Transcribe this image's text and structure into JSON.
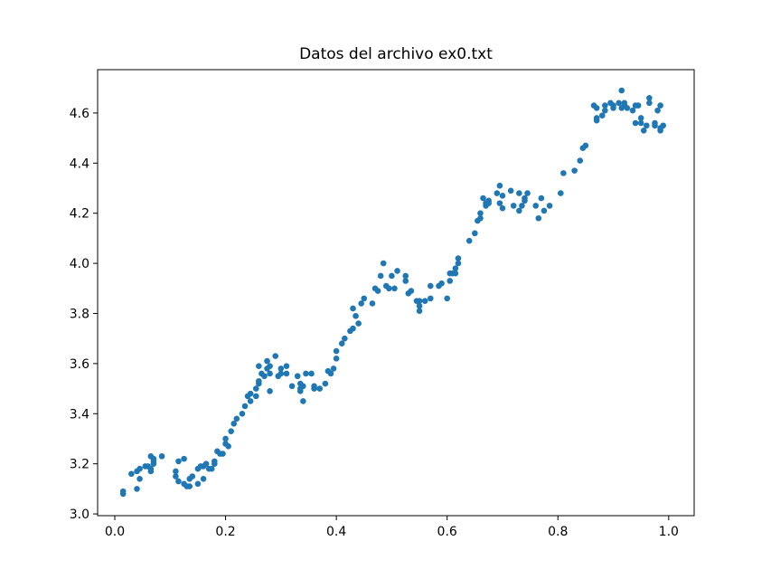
{
  "chart_data": {
    "type": "scatter",
    "title": "Datos del archivo ex0.txt",
    "color": "#1f77b4",
    "x": [
      0.015,
      0.015,
      0.03,
      0.04,
      0.04,
      0.045,
      0.045,
      0.055,
      0.06,
      0.065,
      0.065,
      0.065,
      0.07,
      0.07,
      0.07,
      0.085,
      0.11,
      0.11,
      0.115,
      0.115,
      0.125,
      0.125,
      0.13,
      0.135,
      0.135,
      0.14,
      0.15,
      0.15,
      0.155,
      0.16,
      0.16,
      0.165,
      0.17,
      0.175,
      0.18,
      0.18,
      0.185,
      0.19,
      0.195,
      0.2,
      0.2,
      0.205,
      0.21,
      0.215,
      0.22,
      0.23,
      0.235,
      0.24,
      0.245,
      0.245,
      0.255,
      0.255,
      0.26,
      0.26,
      0.26,
      0.265,
      0.27,
      0.275,
      0.275,
      0.28,
      0.28,
      0.28,
      0.29,
      0.295,
      0.3,
      0.3,
      0.31,
      0.31,
      0.32,
      0.33,
      0.335,
      0.335,
      0.335,
      0.34,
      0.34,
      0.345,
      0.355,
      0.36,
      0.36,
      0.37,
      0.38,
      0.385,
      0.39,
      0.395,
      0.4,
      0.4,
      0.41,
      0.415,
      0.425,
      0.43,
      0.43,
      0.435,
      0.44,
      0.445,
      0.45,
      0.465,
      0.47,
      0.475,
      0.48,
      0.485,
      0.49,
      0.495,
      0.5,
      0.505,
      0.51,
      0.525,
      0.525,
      0.53,
      0.535,
      0.545,
      0.55,
      0.55,
      0.55,
      0.56,
      0.57,
      0.57,
      0.585,
      0.59,
      0.6,
      0.605,
      0.605,
      0.61,
      0.615,
      0.615,
      0.62,
      0.62,
      0.64,
      0.65,
      0.655,
      0.66,
      0.66,
      0.665,
      0.67,
      0.67,
      0.675,
      0.675,
      0.69,
      0.695,
      0.695,
      0.7,
      0.7,
      0.715,
      0.72,
      0.73,
      0.73,
      0.735,
      0.74,
      0.74,
      0.745,
      0.76,
      0.765,
      0.77,
      0.775,
      0.785,
      0.805,
      0.81,
      0.83,
      0.84,
      0.845,
      0.85,
      0.865,
      0.87,
      0.87,
      0.87,
      0.88,
      0.885,
      0.885,
      0.895,
      0.9,
      0.9,
      0.91,
      0.915,
      0.915,
      0.92,
      0.92,
      0.925,
      0.935,
      0.94,
      0.94,
      0.945,
      0.95,
      0.95,
      0.955,
      0.96,
      0.965,
      0.965,
      0.975,
      0.975,
      0.98,
      0.985,
      0.985,
      0.985,
      0.99
    ],
    "values": [
      3.08,
      3.09,
      3.16,
      3.17,
      3.1,
      3.14,
      3.18,
      3.19,
      3.19,
      3.23,
      3.18,
      3.17,
      3.22,
      3.2,
      3.21,
      3.23,
      3.15,
      3.17,
      3.13,
      3.21,
      3.22,
      3.12,
      3.11,
      3.14,
      3.11,
      3.15,
      3.12,
      3.18,
      3.19,
      3.14,
      3.19,
      3.2,
      3.18,
      3.18,
      3.2,
      3.21,
      3.25,
      3.24,
      3.24,
      3.28,
      3.3,
      3.27,
      3.33,
      3.36,
      3.38,
      3.4,
      3.43,
      3.47,
      3.45,
      3.48,
      3.47,
      3.5,
      3.52,
      3.53,
      3.59,
      3.56,
      3.55,
      3.58,
      3.61,
      3.59,
      3.49,
      3.56,
      3.63,
      3.55,
      3.58,
      3.56,
      3.59,
      3.56,
      3.51,
      3.55,
      3.5,
      3.52,
      3.49,
      3.45,
      3.51,
      3.56,
      3.56,
      3.51,
      3.5,
      3.5,
      3.52,
      3.57,
      3.56,
      3.58,
      3.62,
      3.65,
      3.68,
      3.7,
      3.73,
      3.74,
      3.82,
      3.79,
      3.76,
      3.84,
      3.86,
      3.84,
      3.9,
      3.89,
      3.95,
      4.0,
      3.91,
      3.9,
      3.95,
      3.9,
      3.97,
      3.93,
      3.95,
      3.88,
      3.89,
      3.85,
      3.81,
      3.83,
      3.85,
      3.85,
      3.91,
      3.86,
      3.91,
      3.92,
      3.86,
      3.93,
      3.96,
      3.96,
      3.96,
      3.98,
      4.02,
      4.0,
      4.09,
      4.12,
      4.17,
      4.2,
      4.18,
      4.26,
      4.23,
      4.24,
      4.24,
      4.25,
      4.28,
      4.31,
      4.24,
      4.27,
      4.22,
      4.29,
      4.23,
      4.21,
      4.28,
      4.23,
      4.26,
      4.25,
      4.28,
      4.23,
      4.18,
      4.26,
      4.21,
      4.23,
      4.28,
      4.36,
      4.37,
      4.41,
      4.46,
      4.47,
      4.63,
      4.57,
      4.58,
      4.62,
      4.59,
      4.63,
      4.61,
      4.64,
      4.63,
      4.62,
      4.64,
      4.69,
      4.62,
      4.63,
      4.64,
      4.62,
      4.61,
      4.63,
      4.56,
      4.63,
      4.56,
      4.58,
      4.53,
      4.55,
      4.66,
      4.64,
      4.56,
      4.55,
      4.61,
      4.63,
      4.54,
      4.53,
      4.55
    ],
    "xlim": [
      -0.031,
      1.046
    ],
    "xticks": [
      {
        "value": 0,
        "label": "0.0"
      },
      0.2,
      0.4,
      0.6,
      0.8,
      {
        "value": 1,
        "label": "1.0"
      }
    ],
    "ylim": [
      2.993,
      4.773
    ],
    "yticks": [
      {
        "value": 3,
        "label": "3.0"
      },
      3.2,
      3.4,
      3.6,
      3.8,
      {
        "value": 4,
        "label": "4.0"
      },
      4.2,
      4.4,
      4.6
    ],
    "grid": false
  }
}
